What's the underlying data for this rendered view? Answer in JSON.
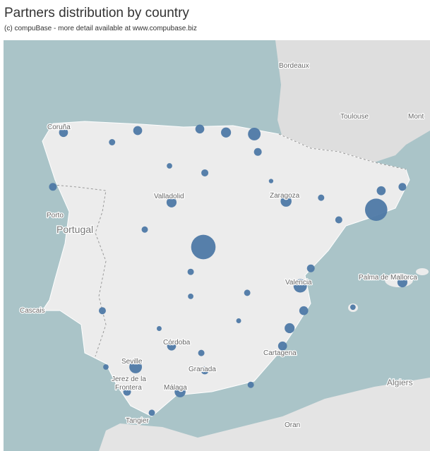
{
  "title": "Partners distribution by country",
  "subtitle": "(c) compuBase - more detail available at www.compubase.biz",
  "places": [
    "Bordeaux",
    "Toulouse",
    "Mont",
    "Coruña",
    "Valladolid",
    "Zaragoza",
    "Porto",
    "Portugal",
    "Cascais",
    "Valencia",
    "Palma de Mallorca",
    "Córdoba",
    "Seville",
    "Granada",
    "Jerez de la",
    "Frontera",
    "Málaga",
    "Cartagena",
    "Algiers",
    "Tangier",
    "Oran"
  ],
  "marker_color": "#4e79a7",
  "partners": [
    {
      "lon": -3.7,
      "lat": 40.4,
      "count": 300
    },
    {
      "lon": 2.17,
      "lat": 41.36,
      "count": 250
    },
    {
      "lon": -0.41,
      "lat": 39.4,
      "count": 90
    },
    {
      "lon": -1.97,
      "lat": 43.31,
      "count": 80
    },
    {
      "lon": -2.93,
      "lat": 43.35,
      "count": 50
    },
    {
      "lon": -8.45,
      "lat": 43.35,
      "count": 40
    },
    {
      "lon": -8.81,
      "lat": 41.95,
      "count": 30
    },
    {
      "lon": -5.93,
      "lat": 43.4,
      "count": 40
    },
    {
      "lon": -3.82,
      "lat": 43.44,
      "count": 40
    },
    {
      "lon": -0.89,
      "lat": 41.58,
      "count": 60
    },
    {
      "lon": -4.78,
      "lat": 41.55,
      "count": 50
    },
    {
      "lon": -6.0,
      "lat": 37.31,
      "count": 80
    },
    {
      "lon": -4.49,
      "lat": 36.67,
      "count": 60
    },
    {
      "lon": -3.65,
      "lat": 37.22,
      "count": 30
    },
    {
      "lon": -4.78,
      "lat": 37.85,
      "count": 40
    },
    {
      "lon": -0.77,
      "lat": 38.31,
      "count": 50
    },
    {
      "lon": -0.29,
      "lat": 38.76,
      "count": 40
    },
    {
      "lon": -1.01,
      "lat": 37.85,
      "count": 40
    },
    {
      "lon": 3.06,
      "lat": 39.49,
      "count": 50
    },
    {
      "lon": 2.34,
      "lat": 41.85,
      "count": 40
    },
    {
      "lon": 0.3,
      "lat": 41.67,
      "count": 20
    },
    {
      "lon": -1.85,
      "lat": 42.85,
      "count": 30
    },
    {
      "lon": -5.69,
      "lat": 40.85,
      "count": 20
    },
    {
      "lon": -3.65,
      "lat": 42.31,
      "count": 25
    },
    {
      "lon": -7.13,
      "lat": 38.76,
      "count": 25
    },
    {
      "lon": -6.29,
      "lat": 36.67,
      "count": 30
    },
    {
      "lon": -5.45,
      "lat": 36.13,
      "count": 20
    },
    {
      "lon": -2.09,
      "lat": 36.85,
      "count": 20
    },
    {
      "lon": -4.13,
      "lat": 39.76,
      "count": 20
    },
    {
      "lon": -0.05,
      "lat": 39.85,
      "count": 30
    },
    {
      "lon": 1.38,
      "lat": 38.85,
      "count": 15
    },
    {
      "lon": -2.21,
      "lat": 39.22,
      "count": 20
    },
    {
      "lon": -7.01,
      "lat": 37.31,
      "count": 15
    },
    {
      "lon": -3.77,
      "lat": 37.67,
      "count": 20
    },
    {
      "lon": -4.13,
      "lat": 39.13,
      "count": 15
    },
    {
      "lon": -4.85,
      "lat": 42.49,
      "count": 15
    },
    {
      "lon": 3.06,
      "lat": 41.95,
      "count": 30
    },
    {
      "lon": -6.8,
      "lat": 43.1,
      "count": 20
    },
    {
      "lon": 0.9,
      "lat": 41.1,
      "count": 25
    },
    {
      "lon": -2.5,
      "lat": 38.5,
      "count": 12
    },
    {
      "lon": -5.2,
      "lat": 38.3,
      "count": 12
    },
    {
      "lon": -1.4,
      "lat": 42.1,
      "count": 10
    }
  ]
}
